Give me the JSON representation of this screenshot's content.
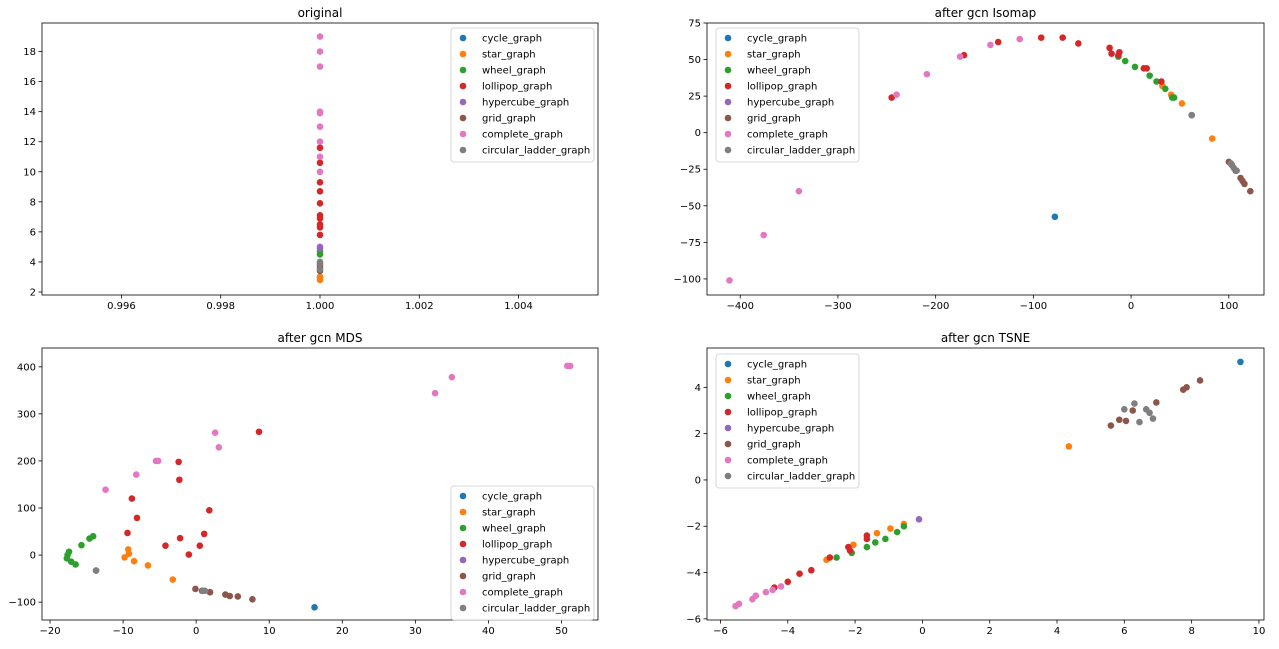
{
  "colors": {
    "cycle_graph": "#1f77b4",
    "star_graph": "#ff7f0e",
    "wheel_graph": "#2ca02c",
    "lollipop_graph": "#d62728",
    "hypercube_graph": "#9467bd",
    "grid_graph": "#8c564b",
    "complete_graph": "#e377c2",
    "circular_ladder_graph": "#7f7f7f"
  },
  "chart_data": [
    {
      "type": "scatter",
      "title": "original",
      "xlim": [
        0.9944,
        1.0056
      ],
      "ylim": [
        1.8,
        19.9
      ],
      "xticks": [
        0.996,
        0.998,
        1.0,
        1.002,
        1.004
      ],
      "xtick_labels": [
        "0.996",
        "0.998",
        "1.000",
        "1.002",
        "1.004"
      ],
      "yticks": [
        2,
        4,
        6,
        8,
        10,
        12,
        14,
        16,
        18
      ],
      "ytick_labels": [
        "2",
        "4",
        "6",
        "8",
        "10",
        "12",
        "14",
        "16",
        "18"
      ],
      "legend": "top-right",
      "series": [
        {
          "name": "cycle_graph",
          "color": "#1f77b4",
          "points": [
            [
              1.0,
              3.0
            ]
          ]
        },
        {
          "name": "star_graph",
          "color": "#ff7f0e",
          "points": [
            [
              1.0,
              2.8
            ],
            [
              1.0,
              3.0
            ]
          ]
        },
        {
          "name": "wheel_graph",
          "color": "#2ca02c",
          "points": [
            [
              1.0,
              4.5
            ],
            [
              1.0,
              4.7
            ]
          ]
        },
        {
          "name": "lollipop_graph",
          "color": "#d62728",
          "points": [
            [
              1.0,
              5.8
            ],
            [
              1.0,
              6.3
            ],
            [
              1.0,
              6.5
            ],
            [
              1.0,
              6.9
            ],
            [
              1.0,
              7.1
            ],
            [
              1.0,
              7.9
            ],
            [
              1.0,
              8.7
            ],
            [
              1.0,
              9.3
            ],
            [
              1.0,
              10.6
            ],
            [
              1.0,
              11.6
            ]
          ]
        },
        {
          "name": "hypercube_graph",
          "color": "#9467bd",
          "points": [
            [
              1.0,
              4.9
            ],
            [
              1.0,
              5.0
            ]
          ]
        },
        {
          "name": "grid_graph",
          "color": "#8c564b",
          "points": [
            [
              1.0,
              3.4
            ],
            [
              1.0,
              3.6
            ],
            [
              1.0,
              3.8
            ]
          ]
        },
        {
          "name": "complete_graph",
          "color": "#e377c2",
          "points": [
            [
              1.0,
              10.0
            ],
            [
              1.0,
              11.0
            ],
            [
              1.0,
              12.0
            ],
            [
              1.0,
              13.0
            ],
            [
              1.0,
              13.9
            ],
            [
              1.0,
              14.0
            ],
            [
              1.0,
              17.0
            ],
            [
              1.0,
              18.0
            ],
            [
              1.0,
              19.0
            ]
          ]
        },
        {
          "name": "circular_ladder_graph",
          "color": "#7f7f7f",
          "points": [
            [
              1.0,
              3.5
            ],
            [
              1.0,
              3.9
            ],
            [
              1.0,
              4.0
            ]
          ]
        }
      ]
    },
    {
      "type": "scatter",
      "title": "after gcn Isomap",
      "xlim": [
        -434,
        136
      ],
      "ylim": [
        -111,
        75
      ],
      "xticks": [
        -400,
        -300,
        -200,
        -100,
        0,
        100
      ],
      "xtick_labels": [
        "−400",
        "−300",
        "−200",
        "−100",
        "0",
        "100"
      ],
      "yticks": [
        -100,
        -75,
        -50,
        -25,
        0,
        25,
        50,
        75
      ],
      "ytick_labels": [
        "−100",
        "−75",
        "−50",
        "−25",
        "0",
        "25",
        "50",
        "75"
      ],
      "legend": "top-left",
      "series": [
        {
          "name": "cycle_graph",
          "color": "#1f77b4",
          "points": [
            [
              -78,
              -57.5
            ]
          ]
        },
        {
          "name": "star_graph",
          "color": "#ff7f0e",
          "points": [
            [
              83,
              -4
            ],
            [
              52,
              20
            ],
            [
              32,
              32
            ],
            [
              41,
              26
            ]
          ]
        },
        {
          "name": "wheel_graph",
          "color": "#2ca02c",
          "points": [
            [
              4,
              45
            ],
            [
              -6,
              49
            ],
            [
              -13,
              52
            ],
            [
              19,
              39
            ],
            [
              26,
              35
            ],
            [
              35,
              30
            ],
            [
              42,
              24
            ],
            [
              44,
              24
            ]
          ]
        },
        {
          "name": "lollipop_graph",
          "color": "#d62728",
          "points": [
            [
              -245,
              24
            ],
            [
              -171,
              53
            ],
            [
              -136,
              62
            ],
            [
              -92,
              65
            ],
            [
              -70,
              65
            ],
            [
              -54,
              61
            ],
            [
              -22,
              58
            ],
            [
              -20,
              54
            ],
            [
              -12,
              55
            ],
            [
              -13,
              53
            ],
            [
              13,
              44
            ],
            [
              16,
              44
            ],
            [
              31,
              35
            ]
          ]
        },
        {
          "name": "hypercube_graph",
          "color": "#9467bd",
          "points": [
            [
              62,
              12
            ]
          ]
        },
        {
          "name": "grid_graph",
          "color": "#8c564b",
          "points": [
            [
              100,
              -20
            ],
            [
              103,
              -22
            ],
            [
              107,
              -26
            ],
            [
              112,
              -31
            ],
            [
              114,
              -33
            ],
            [
              116,
              -35
            ],
            [
              122,
              -40
            ]
          ]
        },
        {
          "name": "complete_graph",
          "color": "#e377c2",
          "points": [
            [
              -411,
              -101
            ],
            [
              -376,
              -70
            ],
            [
              -340,
              -40
            ],
            [
              -240,
              26
            ],
            [
              -209,
              40
            ],
            [
              -175,
              52
            ],
            [
              -144,
              60
            ],
            [
              -114,
              64
            ]
          ]
        },
        {
          "name": "circular_ladder_graph",
          "color": "#7f7f7f",
          "points": [
            [
              62,
              12
            ],
            [
              102,
              -21
            ],
            [
              105,
              -24
            ],
            [
              108,
              -26
            ]
          ]
        }
      ]
    },
    {
      "type": "scatter",
      "title": "after gcn MDS",
      "xlim": [
        -21.1,
        55.0
      ],
      "ylim": [
        -138,
        440
      ],
      "xticks": [
        -20,
        -10,
        0,
        10,
        20,
        30,
        40,
        50
      ],
      "xtick_labels": [
        "−20",
        "−10",
        "0",
        "10",
        "20",
        "30",
        "40",
        "50"
      ],
      "yticks": [
        -100,
        0,
        100,
        200,
        300,
        400
      ],
      "ytick_labels": [
        "−100",
        "0",
        "100",
        "200",
        "300",
        "400"
      ],
      "legend": "lower-right",
      "series": [
        {
          "name": "cycle_graph",
          "color": "#1f77b4",
          "points": [
            [
              16.2,
              -111
            ]
          ]
        },
        {
          "name": "star_graph",
          "color": "#ff7f0e",
          "points": [
            [
              -9.3,
              12
            ],
            [
              -9.2,
              3
            ],
            [
              -9.8,
              -5
            ],
            [
              -8.5,
              -13
            ],
            [
              -6.6,
              -22
            ],
            [
              -3.2,
              -52
            ]
          ]
        },
        {
          "name": "wheel_graph",
          "color": "#2ca02c",
          "points": [
            [
              -17.6,
              0
            ],
            [
              -17.4,
              7
            ],
            [
              -17.7,
              -7
            ],
            [
              -17.1,
              -14
            ],
            [
              -16.5,
              -20
            ],
            [
              -15.7,
              21
            ],
            [
              -14.6,
              35
            ],
            [
              -14.1,
              40
            ]
          ]
        },
        {
          "name": "lollipop_graph",
          "color": "#d62728",
          "points": [
            [
              -9.4,
              47
            ],
            [
              -8.8,
              120
            ],
            [
              -8.1,
              79
            ],
            [
              -4.2,
              20
            ],
            [
              -2.4,
              198
            ],
            [
              -2.3,
              160
            ],
            [
              -2.2,
              36
            ],
            [
              -1.0,
              1
            ],
            [
              0.5,
              20
            ],
            [
              1.1,
              45
            ],
            [
              1.8,
              95
            ],
            [
              8.6,
              262
            ]
          ]
        },
        {
          "name": "hypercube_graph",
          "color": "#9467bd",
          "points": [
            [
              -13.7,
              -33
            ]
          ]
        },
        {
          "name": "grid_graph",
          "color": "#8c564b",
          "points": [
            [
              -0.1,
              -72
            ],
            [
              0.8,
              -76
            ],
            [
              1.9,
              -79
            ],
            [
              4.0,
              -84
            ],
            [
              4.6,
              -87
            ],
            [
              5.7,
              -88
            ],
            [
              7.7,
              -94
            ]
          ]
        },
        {
          "name": "complete_graph",
          "color": "#e377c2",
          "points": [
            [
              -12.4,
              139
            ],
            [
              -8.2,
              171
            ],
            [
              -5.5,
              200
            ],
            [
              -5.2,
              200
            ],
            [
              2.6,
              260
            ],
            [
              3.1,
              229
            ],
            [
              32.7,
              344
            ],
            [
              35.0,
              378
            ],
            [
              50.8,
              402
            ],
            [
              51.2,
              402
            ]
          ]
        },
        {
          "name": "circular_ladder_graph",
          "color": "#7f7f7f",
          "points": [
            [
              -13.7,
              -33
            ],
            [
              0.9,
              -76
            ],
            [
              1.2,
              -76
            ]
          ]
        }
      ]
    },
    {
      "type": "scatter",
      "title": "after gcn TSNE",
      "xlim": [
        -6.4,
        10.15
      ],
      "ylim": [
        -6.05,
        5.7
      ],
      "xticks": [
        -6,
        -4,
        -2,
        0,
        2,
        4,
        6,
        8,
        10
      ],
      "xtick_labels": [
        "−6",
        "−4",
        "−2",
        "0",
        "2",
        "4",
        "6",
        "8",
        "10"
      ],
      "yticks": [
        -6,
        -4,
        -2,
        0,
        2,
        4
      ],
      "ytick_labels": [
        "−6",
        "−4",
        "−2",
        "0",
        "2",
        "4"
      ],
      "legend": "top-left",
      "series": [
        {
          "name": "cycle_graph",
          "color": "#1f77b4",
          "points": [
            [
              9.45,
              5.1
            ]
          ]
        },
        {
          "name": "star_graph",
          "color": "#ff7f0e",
          "points": [
            [
              4.35,
              1.45
            ],
            [
              -0.55,
              -1.9
            ],
            [
              -0.95,
              -2.1
            ],
            [
              -1.35,
              -2.3
            ],
            [
              -2.05,
              -2.8
            ],
            [
              -2.85,
              -3.45
            ]
          ]
        },
        {
          "name": "wheel_graph",
          "color": "#2ca02c",
          "points": [
            [
              -0.55,
              -2.0
            ],
            [
              -0.75,
              -2.25
            ],
            [
              -1.1,
              -2.55
            ],
            [
              -1.4,
              -2.7
            ],
            [
              -1.65,
              -2.9
            ],
            [
              -2.1,
              -3.15
            ],
            [
              -2.55,
              -3.35
            ]
          ]
        },
        {
          "name": "lollipop_graph",
          "color": "#d62728",
          "points": [
            [
              -1.65,
              -2.4
            ],
            [
              -1.65,
              -2.55
            ],
            [
              -2.2,
              -2.9
            ],
            [
              -2.15,
              -3.05
            ],
            [
              -2.75,
              -3.35
            ],
            [
              -3.3,
              -3.9
            ],
            [
              -3.65,
              -4.05
            ],
            [
              -4.0,
              -4.4
            ],
            [
              -4.4,
              -4.65
            ]
          ]
        },
        {
          "name": "hypercube_graph",
          "color": "#9467bd",
          "points": [
            [
              -0.1,
              -1.7
            ]
          ]
        },
        {
          "name": "grid_graph",
          "color": "#8c564b",
          "points": [
            [
              5.6,
              2.35
            ],
            [
              5.85,
              2.6
            ],
            [
              6.05,
              2.55
            ],
            [
              6.25,
              3.0
            ],
            [
              6.95,
              3.35
            ],
            [
              7.75,
              3.9
            ],
            [
              7.85,
              4.0
            ],
            [
              8.25,
              4.3
            ]
          ]
        },
        {
          "name": "complete_graph",
          "color": "#e377c2",
          "points": [
            [
              -5.55,
              -5.45
            ],
            [
              -5.45,
              -5.35
            ],
            [
              -5.05,
              -5.15
            ],
            [
              -4.95,
              -5.0
            ],
            [
              -4.65,
              -4.85
            ],
            [
              -4.45,
              -4.75
            ],
            [
              -4.2,
              -4.6
            ]
          ]
        },
        {
          "name": "circular_ladder_graph",
          "color": "#7f7f7f",
          "points": [
            [
              6.0,
              3.05
            ],
            [
              6.3,
              3.3
            ],
            [
              6.45,
              2.5
            ],
            [
              6.65,
              3.05
            ],
            [
              6.75,
              2.9
            ],
            [
              6.85,
              2.65
            ]
          ]
        }
      ]
    }
  ]
}
